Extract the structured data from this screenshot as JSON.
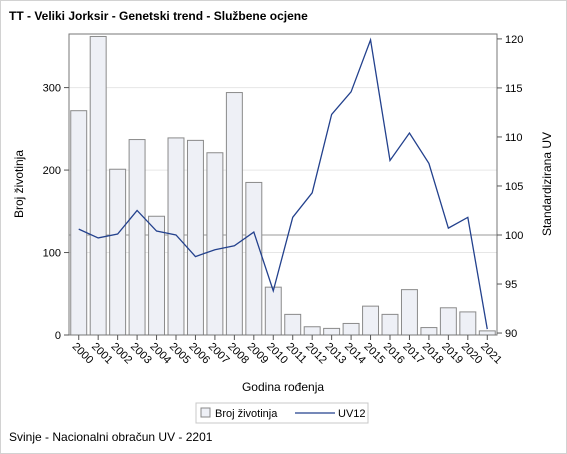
{
  "chart_data": {
    "type": "bar",
    "title": "TT - Veliki Jorksir - Genetski trend - Službene ocjene",
    "footnote": "Svinje - Nacionalni obračun UV - 2201",
    "xlabel": "Godina rođenja",
    "ylabel": "Broj životinja",
    "y2label": "Standardizirana UV",
    "categories": [
      "2000",
      "2001",
      "2002",
      "2003",
      "2004",
      "2005",
      "2006",
      "2007",
      "2008",
      "2009",
      "2010",
      "2011",
      "2012",
      "2013",
      "2014",
      "2015",
      "2016",
      "2017",
      "2018",
      "2019",
      "2020",
      "2021"
    ],
    "ylim": [
      0,
      365
    ],
    "y_ticks": [
      "0",
      "100",
      "200",
      "300"
    ],
    "y2lim": [
      89.8,
      120.5
    ],
    "y2_ticks": [
      "90",
      "95",
      "100",
      "105",
      "110",
      "115",
      "120"
    ],
    "reference_line_y2": 100,
    "grid": true,
    "legend_position": "bottom",
    "series": [
      {
        "name": "Broj životinja",
        "type": "bar",
        "axis": "left",
        "color": "#eef0f6",
        "values": [
          272,
          362,
          201,
          237,
          144,
          239,
          236,
          221,
          294,
          185,
          58,
          25,
          10,
          8,
          14,
          35,
          25,
          55,
          9,
          33,
          28,
          5
        ]
      },
      {
        "name": "UV12",
        "type": "line",
        "axis": "right",
        "color": "#23418d",
        "values": [
          100.6,
          99.7,
          100.1,
          102.5,
          100.4,
          100.0,
          97.8,
          98.5,
          98.9,
          100.3,
          94.3,
          101.8,
          104.3,
          112.3,
          114.6,
          119.9,
          107.6,
          110.4,
          107.3,
          100.7,
          101.8,
          90.4
        ]
      }
    ]
  }
}
